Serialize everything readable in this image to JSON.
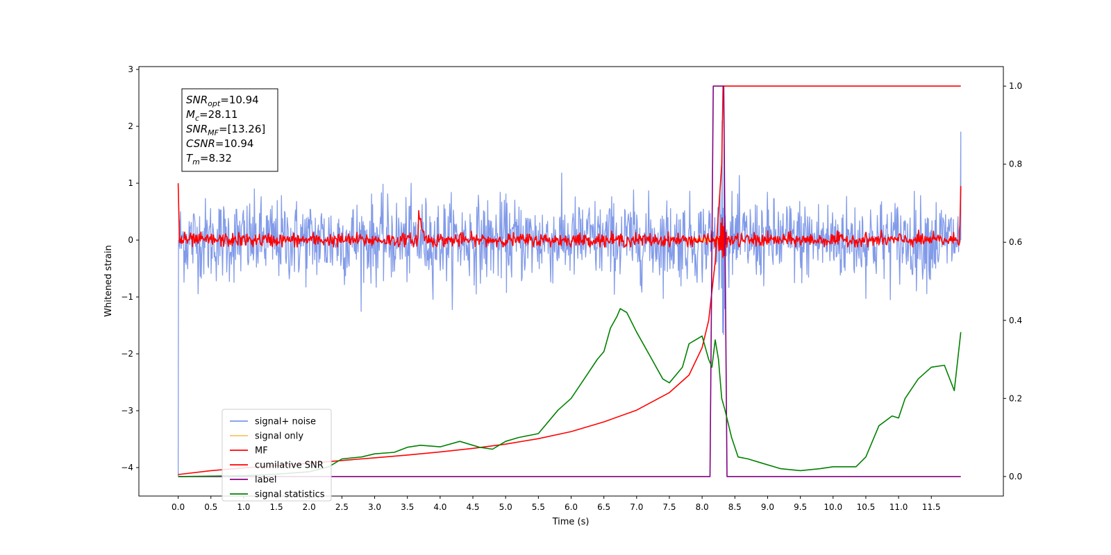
{
  "chart_data": {
    "type": "line",
    "xlabel": "Time (s)",
    "ylabel": "Whitened strain",
    "xlim": [
      -0.6,
      12.6
    ],
    "ylim": [
      -4.5,
      3.05
    ],
    "y2lim": [
      -0.05,
      1.05
    ],
    "xticks": [
      0.0,
      0.5,
      1.0,
      1.5,
      2.0,
      2.5,
      3.0,
      3.5,
      4.0,
      4.5,
      5.0,
      5.5,
      6.0,
      6.5,
      7.0,
      7.5,
      8.0,
      8.5,
      9.0,
      9.5,
      10.0,
      10.5,
      11.0,
      11.5
    ],
    "xtick_labels": [
      "0.0",
      "0.5",
      "1.0",
      "1.5",
      "2.0",
      "2.5",
      "3.0",
      "3.5",
      "4.0",
      "4.5",
      "5.0",
      "5.5",
      "6.0",
      "6.5",
      "7.0",
      "7.5",
      "8.0",
      "8.5",
      "9.0",
      "9.5",
      "10.0",
      "10.5",
      "11.0",
      "11.5"
    ],
    "yticks": [
      3,
      2,
      1,
      0,
      -1,
      -2,
      -3,
      -4
    ],
    "ytick_labels": [
      "3",
      "2",
      "1",
      "0",
      "−1",
      "−2",
      "−3",
      "−4"
    ],
    "y2ticks": [
      1.0,
      0.8,
      0.6,
      0.4,
      0.2,
      0.0
    ],
    "y2tick_labels": [
      "1.0",
      "0.8",
      "0.6",
      "0.4",
      "0.2",
      "0.0"
    ],
    "grid": false,
    "legend_position": "lower-left",
    "annotation": {
      "lines": [
        {
          "name": "SNR",
          "sub": "opt",
          "value": "=10.94"
        },
        {
          "name": "M",
          "sub": "c",
          "value": "=28.11"
        },
        {
          "name": "SNR",
          "sub": "MF",
          "value": "=[13.26]"
        },
        {
          "name": "CSNR",
          "sub": "",
          "value": "=10.94"
        },
        {
          "name": "T",
          "sub": "m",
          "value": "=8.32"
        }
      ]
    },
    "series": [
      {
        "name": "signal+ noise",
        "color": "#7b96e8",
        "axis": "left",
        "style": "noise",
        "x_range": [
          0.0,
          11.95
        ],
        "noise_std": 0.36,
        "peak_max": 1.4,
        "peak_min": -1.6,
        "chirp_time": 8.32,
        "chirp_max": 2.05,
        "chirp_min": -1.6,
        "end_values": [
          1.9,
          0.0
        ],
        "start_values": [
          -4.15,
          0.0
        ]
      },
      {
        "name": "signal only",
        "color": "#f5c46b",
        "axis": "left",
        "style": "chirp",
        "chirp_time": 8.32,
        "max_amplitude": 0.45
      },
      {
        "name": "MF",
        "color": "#ff0000",
        "axis": "left",
        "style": "noise",
        "x_range": [
          0.0,
          11.95
        ],
        "noise_std": 0.06,
        "start_value": 1.0,
        "end_value": 0.95,
        "glitch_time": 3.67,
        "glitch_value": 0.5,
        "chirp_time": 8.32,
        "chirp_max": 0.35,
        "chirp_min": -0.3
      },
      {
        "name": "cumilative SNR",
        "color": "#ff0000",
        "axis": "right",
        "x": [
          0.0,
          0.5,
          1.0,
          1.5,
          2.0,
          2.5,
          3.0,
          3.5,
          4.0,
          4.5,
          5.0,
          5.5,
          6.0,
          6.5,
          7.0,
          7.5,
          7.8,
          8.0,
          8.1,
          8.2,
          8.3,
          8.32,
          11.95
        ],
        "y": [
          0.005,
          0.015,
          0.022,
          0.028,
          0.034,
          0.041,
          0.048,
          0.055,
          0.063,
          0.072,
          0.083,
          0.097,
          0.115,
          0.14,
          0.17,
          0.215,
          0.26,
          0.33,
          0.4,
          0.55,
          0.8,
          1.0,
          1.0
        ]
      },
      {
        "name": "label",
        "color": "#800080",
        "axis": "right",
        "x": [
          0.0,
          8.12,
          8.17,
          8.33,
          8.38,
          11.95
        ],
        "y": [
          0.0,
          0.0,
          1.0,
          1.0,
          0.0,
          0.0
        ]
      },
      {
        "name": "signal statistics",
        "color": "#008000",
        "axis": "right",
        "x": [
          0.0,
          1.0,
          1.5,
          2.0,
          2.3,
          2.5,
          2.8,
          3.0,
          3.3,
          3.5,
          3.7,
          4.0,
          4.3,
          4.6,
          4.8,
          5.0,
          5.2,
          5.5,
          5.8,
          6.0,
          6.2,
          6.4,
          6.5,
          6.6,
          6.7,
          6.75,
          6.85,
          7.0,
          7.2,
          7.4,
          7.5,
          7.6,
          7.7,
          7.8,
          7.9,
          8.0,
          8.1,
          8.15,
          8.2,
          8.25,
          8.3,
          8.35,
          8.45,
          8.55,
          8.7,
          8.9,
          9.2,
          9.5,
          9.8,
          10.0,
          10.2,
          10.35,
          10.5,
          10.7,
          10.9,
          11.0,
          11.1,
          11.3,
          11.5,
          11.7,
          11.85,
          11.95
        ],
        "y": [
          0.0,
          0.002,
          0.006,
          0.012,
          0.025,
          0.045,
          0.05,
          0.058,
          0.062,
          0.075,
          0.08,
          0.076,
          0.09,
          0.075,
          0.07,
          0.09,
          0.1,
          0.11,
          0.17,
          0.2,
          0.25,
          0.3,
          0.32,
          0.38,
          0.41,
          0.43,
          0.42,
          0.37,
          0.31,
          0.25,
          0.24,
          0.26,
          0.28,
          0.34,
          0.35,
          0.36,
          0.3,
          0.28,
          0.35,
          0.3,
          0.2,
          0.17,
          0.1,
          0.05,
          0.045,
          0.035,
          0.02,
          0.015,
          0.02,
          0.025,
          0.025,
          0.025,
          0.05,
          0.13,
          0.155,
          0.15,
          0.2,
          0.25,
          0.28,
          0.285,
          0.22,
          0.37
        ]
      }
    ]
  }
}
